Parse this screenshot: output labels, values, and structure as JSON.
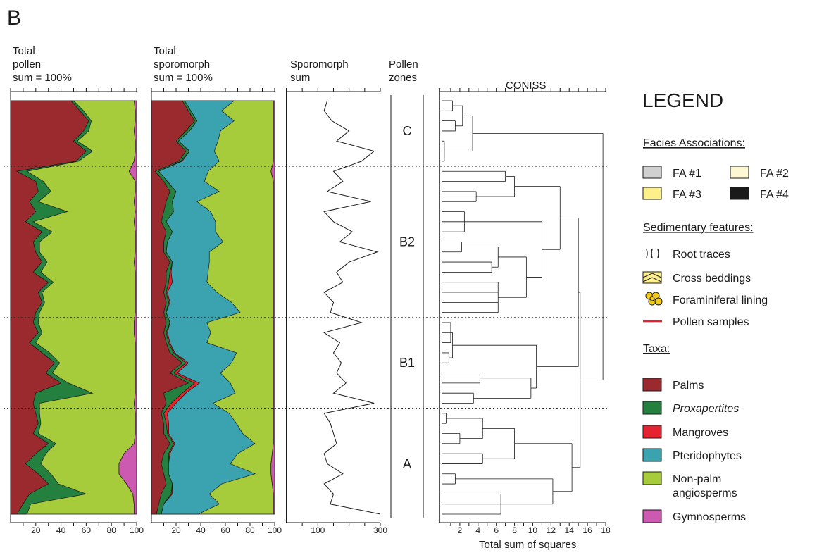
{
  "panel_letter": "B",
  "headers": {
    "pollen": [
      "Total",
      "pollen",
      "sum = 100%"
    ],
    "sporomorph": [
      "Total",
      "sporomorph",
      "sum = 100%"
    ],
    "sporesum": [
      "Sporomorph",
      "sum"
    ],
    "zones": [
      "Pollen",
      "zones"
    ],
    "coniss": "CONISS"
  },
  "coniss_xlabel": "Total sum of squares",
  "zones": [
    {
      "label": "C",
      "top_sample": 0,
      "bottom_sample": 6
    },
    {
      "label": "B2",
      "top_sample": 7,
      "bottom_sample": 21
    },
    {
      "label": "B1",
      "top_sample": 22,
      "bottom_sample": 30
    },
    {
      "label": "A",
      "top_sample": 31,
      "bottom_sample": 41
    }
  ],
  "legend": {
    "title": "LEGEND",
    "facies_title": "Facies Associations:",
    "facies": [
      {
        "label": "FA #1",
        "color": "#d0d0d0"
      },
      {
        "label": "FA #2",
        "color": "#fdf8d2"
      },
      {
        "label": "FA #3",
        "color": "#fdf08a"
      },
      {
        "label": "FA #4",
        "color": "#1a1a1a"
      }
    ],
    "sed_title": "Sedimentary features:",
    "sed": [
      {
        "label": "Root traces",
        "icon": "root-traces-icon"
      },
      {
        "label": "Cross beddings",
        "icon": "cross-beddings-icon"
      },
      {
        "label": "Foraminiferal lining",
        "icon": "foraminifera-icon"
      },
      {
        "label": "Pollen samples",
        "icon": "pollen-sample-line-icon"
      }
    ],
    "taxa_title": "Taxa:",
    "taxa": [
      {
        "label": "Palms",
        "color": "#9b2a2e",
        "italic": false
      },
      {
        "label": "Proxapertites",
        "color": "#23803f",
        "italic": true
      },
      {
        "label": "Mangroves",
        "color": "#e52330",
        "italic": false
      },
      {
        "label": "Pteridophytes",
        "color": "#3ba3b0",
        "italic": false
      },
      {
        "label": "Non-palm angiosperms",
        "color": "#a6cb3b",
        "italic": false
      },
      {
        "label": "Gymnosperms",
        "color": "#cc5ab0",
        "italic": false
      }
    ]
  },
  "chart_data": [
    {
      "type": "area",
      "id": "total-pollen",
      "xlim": [
        0,
        100
      ],
      "xticks": [
        20,
        40,
        60,
        80,
        100
      ],
      "sample_count": 42,
      "stacked_order": [
        "Palms",
        "Proxapertites",
        "Non-palm angiosperms",
        "Gymnosperms"
      ],
      "series": [
        {
          "name": "Palms",
          "color": "#9b2a2e",
          "values": [
            48,
            55,
            62,
            58,
            50,
            60,
            52,
            5,
            20,
            22,
            15,
            20,
            12,
            25,
            18,
            20,
            25,
            18,
            30,
            22,
            25,
            20,
            18,
            22,
            15,
            25,
            35,
            28,
            40,
            20,
            18,
            20,
            22,
            18,
            30,
            20,
            12,
            22,
            30,
            15,
            10,
            5
          ]
        },
        {
          "name": "Proxapertites",
          "color": "#23803f",
          "values": [
            2,
            3,
            2,
            4,
            3,
            5,
            2,
            8,
            6,
            10,
            7,
            25,
            6,
            8,
            5,
            3,
            4,
            6,
            4,
            3,
            2,
            3,
            4,
            3,
            5,
            6,
            4,
            5,
            6,
            45,
            5,
            3,
            2,
            4,
            6,
            8,
            12,
            10,
            8,
            45,
            6,
            8
          ]
        },
        {
          "name": "Gymnosperms",
          "color": "#cc5ab0",
          "values": [
            2,
            1,
            1,
            2,
            1,
            1,
            2,
            6,
            1,
            1,
            2,
            1,
            2,
            1,
            1,
            1,
            2,
            1,
            1,
            1,
            1,
            1,
            2,
            2,
            1,
            1,
            1,
            1,
            1,
            1,
            2,
            1,
            1,
            1,
            2,
            10,
            14,
            14,
            8,
            3,
            2,
            2
          ]
        }
      ]
    },
    {
      "type": "area",
      "id": "total-sporomorph",
      "xlim": [
        0,
        100
      ],
      "xticks": [
        20,
        40,
        60,
        80,
        100
      ],
      "sample_count": 42,
      "stacked_order": [
        "Palms",
        "Proxapertites",
        "Mangroves",
        "Pteridophytes",
        "Non-palm angiosperms",
        "Gymnosperms"
      ],
      "series": [
        {
          "name": "Palms",
          "color": "#9b2a2e",
          "values": [
            25,
            30,
            35,
            28,
            20,
            28,
            22,
            3,
            10,
            15,
            12,
            10,
            8,
            12,
            10,
            10,
            15,
            12,
            12,
            10,
            12,
            10,
            12,
            10,
            12,
            15,
            25,
            15,
            30,
            10,
            12,
            8,
            10,
            10,
            15,
            10,
            8,
            10,
            12,
            8,
            6,
            4
          ]
        },
        {
          "name": "Proxapertites",
          "color": "#23803f",
          "values": [
            2,
            2,
            2,
            3,
            2,
            3,
            2,
            3,
            3,
            5,
            5,
            8,
            4,
            5,
            3,
            2,
            2,
            3,
            2,
            2,
            2,
            2,
            3,
            2,
            2,
            3,
            3,
            3,
            5,
            15,
            4,
            2,
            2,
            3,
            3,
            4,
            6,
            4,
            5,
            8,
            4,
            4
          ]
        },
        {
          "name": "Mangroves",
          "color": "#e52330",
          "values": [
            0,
            0,
            0,
            0,
            0,
            0,
            1,
            0,
            0,
            0,
            0,
            0,
            0,
            0,
            0,
            0,
            0,
            1,
            3,
            1,
            1,
            0,
            0,
            1,
            1,
            1,
            2,
            3,
            4,
            3,
            4,
            3,
            2,
            1,
            1,
            1,
            0,
            0,
            0,
            1,
            0,
            0
          ]
        },
        {
          "name": "Pteridophytes",
          "color": "#3ba3b0",
          "values": [
            40,
            25,
            30,
            25,
            32,
            20,
            30,
            40,
            30,
            35,
            20,
            30,
            40,
            35,
            45,
            35,
            30,
            30,
            28,
            40,
            50,
            60,
            30,
            35,
            30,
            50,
            35,
            35,
            25,
            40,
            30,
            50,
            55,
            60,
            65,
            55,
            50,
            70,
            40,
            30,
            45,
            30
          ]
        },
        {
          "name": "Gymnosperms",
          "color": "#cc5ab0",
          "values": [
            1,
            1,
            1,
            1,
            1,
            1,
            1,
            3,
            1,
            1,
            1,
            1,
            1,
            1,
            1,
            1,
            1,
            1,
            1,
            1,
            1,
            1,
            1,
            1,
            1,
            1,
            1,
            1,
            1,
            1,
            1,
            1,
            1,
            1,
            1,
            2,
            3,
            3,
            2,
            1,
            1,
            1
          ]
        }
      ]
    },
    {
      "type": "line",
      "id": "sporomorph-sum",
      "xlim": [
        0,
        300
      ],
      "xticks": [
        100,
        300
      ],
      "sample_count": 42,
      "series": [
        {
          "name": "Sporomorph sum",
          "values": [
            130,
            120,
            145,
            200,
            160,
            280,
            240,
            150,
            180,
            130,
            270,
            120,
            150,
            210,
            170,
            290,
            200,
            160,
            180,
            120,
            150,
            140,
            240,
            120,
            170,
            150,
            175,
            160,
            190,
            150,
            280,
            120,
            140,
            150,
            160,
            120,
            130,
            180,
            120,
            150,
            140,
            300
          ]
        }
      ]
    },
    {
      "type": "dendrogram",
      "id": "coniss",
      "title": "CONISS",
      "xlabel": "Total sum of squares",
      "xlim": [
        0,
        18
      ],
      "xticks": [
        2,
        4,
        6,
        8,
        10,
        12,
        14,
        16,
        18
      ]
    }
  ]
}
